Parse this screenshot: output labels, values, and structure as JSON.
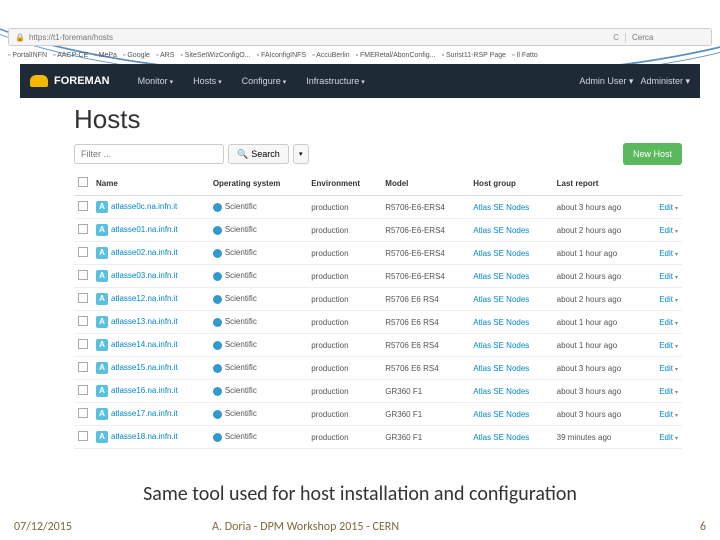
{
  "browser": {
    "url": "https://t1-foreman/hosts",
    "search_placeholder": "Cerca"
  },
  "bookmarks": [
    "PortalINFN",
    "AACP-CE",
    "MePa",
    "Google",
    "ARS",
    "SiteSetWizConfigO...",
    "FAIconfigINFS",
    "AccuBerlin",
    "FMERetal/AbonConfig...",
    "Surist11-RSP Page",
    "Il Fatto"
  ],
  "header": {
    "logo": "FOREMAN",
    "nav": [
      {
        "label": "Monitor"
      },
      {
        "label": "Hosts"
      },
      {
        "label": "Configure"
      },
      {
        "label": "Infrastructure"
      }
    ],
    "admin": "Admin User",
    "admin2": "Administer"
  },
  "page": {
    "title": "Hosts",
    "filter_placeholder": "Filter ...",
    "search_label": "Search",
    "new_host": "New Host"
  },
  "table": {
    "columns": [
      "",
      "Name",
      "Operating system",
      "Environment",
      "Model",
      "Host group",
      "Last report",
      ""
    ],
    "edit_label": "Edit",
    "rows": [
      {
        "name": "atlasse0c.na.infn.it",
        "os": "Scientific",
        "env": "production",
        "model": "R5706-E6-ERS4",
        "hg": "Atlas SE Nodes",
        "last": "about 3 hours ago"
      },
      {
        "name": "atlasse01.na.infn.it",
        "os": "Scientific",
        "env": "production",
        "model": "R5706-E6-ERS4",
        "hg": "Atlas SE Nodes",
        "last": "about 2 hours ago"
      },
      {
        "name": "atlasse02.na.infn.it",
        "os": "Scientific",
        "env": "production",
        "model": "R5706-E6-ERS4",
        "hg": "Atlas SE Nodes",
        "last": "about 1 hour ago"
      },
      {
        "name": "atlasse03.na.infn.it",
        "os": "Scientific",
        "env": "production",
        "model": "R5706-E6-ERS4",
        "hg": "Atlas SE Nodes",
        "last": "about 2 hours ago"
      },
      {
        "name": "atlasse12.na.infn.it",
        "os": "Scientific",
        "env": "production",
        "model": "R5706 E6 RS4",
        "hg": "Atlas SE Nodes",
        "last": "about 2 hours ago"
      },
      {
        "name": "atlasse13.na.infn.it",
        "os": "Scientific",
        "env": "production",
        "model": "R5706 E6 RS4",
        "hg": "Atlas SE Nodes",
        "last": "about 1 hour ago"
      },
      {
        "name": "atlasse14.na.infn.it",
        "os": "Scientific",
        "env": "production",
        "model": "R5706 E6 RS4",
        "hg": "Atlas SE Nodes",
        "last": "about 1 hour ago"
      },
      {
        "name": "atlasse15.na.infn.it",
        "os": "Scientific",
        "env": "production",
        "model": "R5706 E6 RS4",
        "hg": "Atlas SE Nodes",
        "last": "about 3 hours ago"
      },
      {
        "name": "atlasse16.na.infn.it",
        "os": "Scientific",
        "env": "production",
        "model": "GR360 F1",
        "hg": "Atlas SE Nodes",
        "last": "about 3 hours ago"
      },
      {
        "name": "atlasse17.na.infn.it",
        "os": "Scientific",
        "env": "production",
        "model": "GR360 F1",
        "hg": "Atlas SE Nodes",
        "last": "about 3 hours ago"
      },
      {
        "name": "atlasse18.na.infn.it",
        "os": "Scientific",
        "env": "production",
        "model": "GR360 F1",
        "hg": "Atlas SE Nodes",
        "last": "39 minutes ago"
      }
    ]
  },
  "caption": "Same tool used for host installation and configuration",
  "footer": {
    "date": "07/12/2015",
    "author": "A. Doria - DPM Workshop 2015 - CERN",
    "page": "6"
  }
}
